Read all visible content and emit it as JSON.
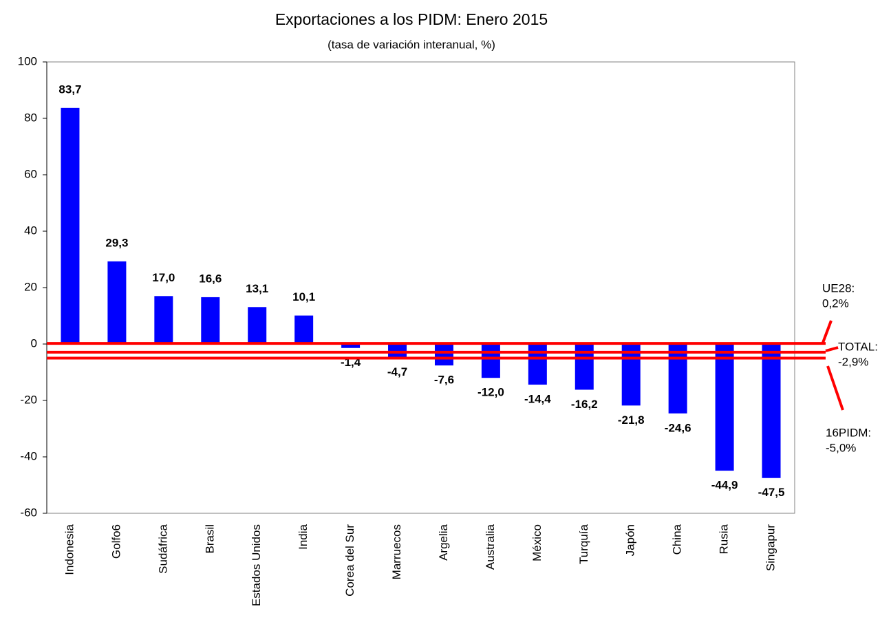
{
  "chart_data": {
    "type": "bar",
    "title": "Exportaciones a los PIDM: Enero 2015",
    "subtitle": "(tasa de variación interanual, %)",
    "categories": [
      "Indonesia",
      "Golfo6",
      "Sudáfrica",
      "Brasil",
      "Estados Unidos",
      "India",
      "Corea del Sur",
      "Marruecos",
      "Argelia",
      "Australia",
      "México",
      "Turquía",
      "Japón",
      "China",
      "Rusia",
      "Singapur"
    ],
    "values": [
      83.7,
      29.3,
      17.0,
      16.6,
      13.1,
      10.1,
      -1.4,
      -4.7,
      -7.6,
      -12.0,
      -14.4,
      -16.2,
      -21.8,
      -24.6,
      -44.9,
      -47.5
    ],
    "value_labels": [
      "83,7",
      "29,3",
      "17,0",
      "16,6",
      "13,1",
      "10,1",
      "-1,4",
      "-4,7",
      "-7,6",
      "-12,0",
      "-14,4",
      "-16,2",
      "-21,8",
      "-24,6",
      "-44,9",
      "-47,5"
    ],
    "color": "#0000ff",
    "ylim": [
      -60,
      100
    ],
    "yticks": [
      -60,
      -40,
      -20,
      0,
      20,
      40,
      60,
      80,
      100
    ],
    "grid": false,
    "reference_lines": [
      {
        "name": "UE28:",
        "label": "0,2%",
        "value": 0.2,
        "color": "#ff0000"
      },
      {
        "name": "TOTAL:",
        "label": "-2,9%",
        "value": -2.9,
        "color": "#ff0000"
      },
      {
        "name": "16PIDM:",
        "label": "-5,0%",
        "value": -5.0,
        "color": "#ff0000"
      }
    ]
  }
}
